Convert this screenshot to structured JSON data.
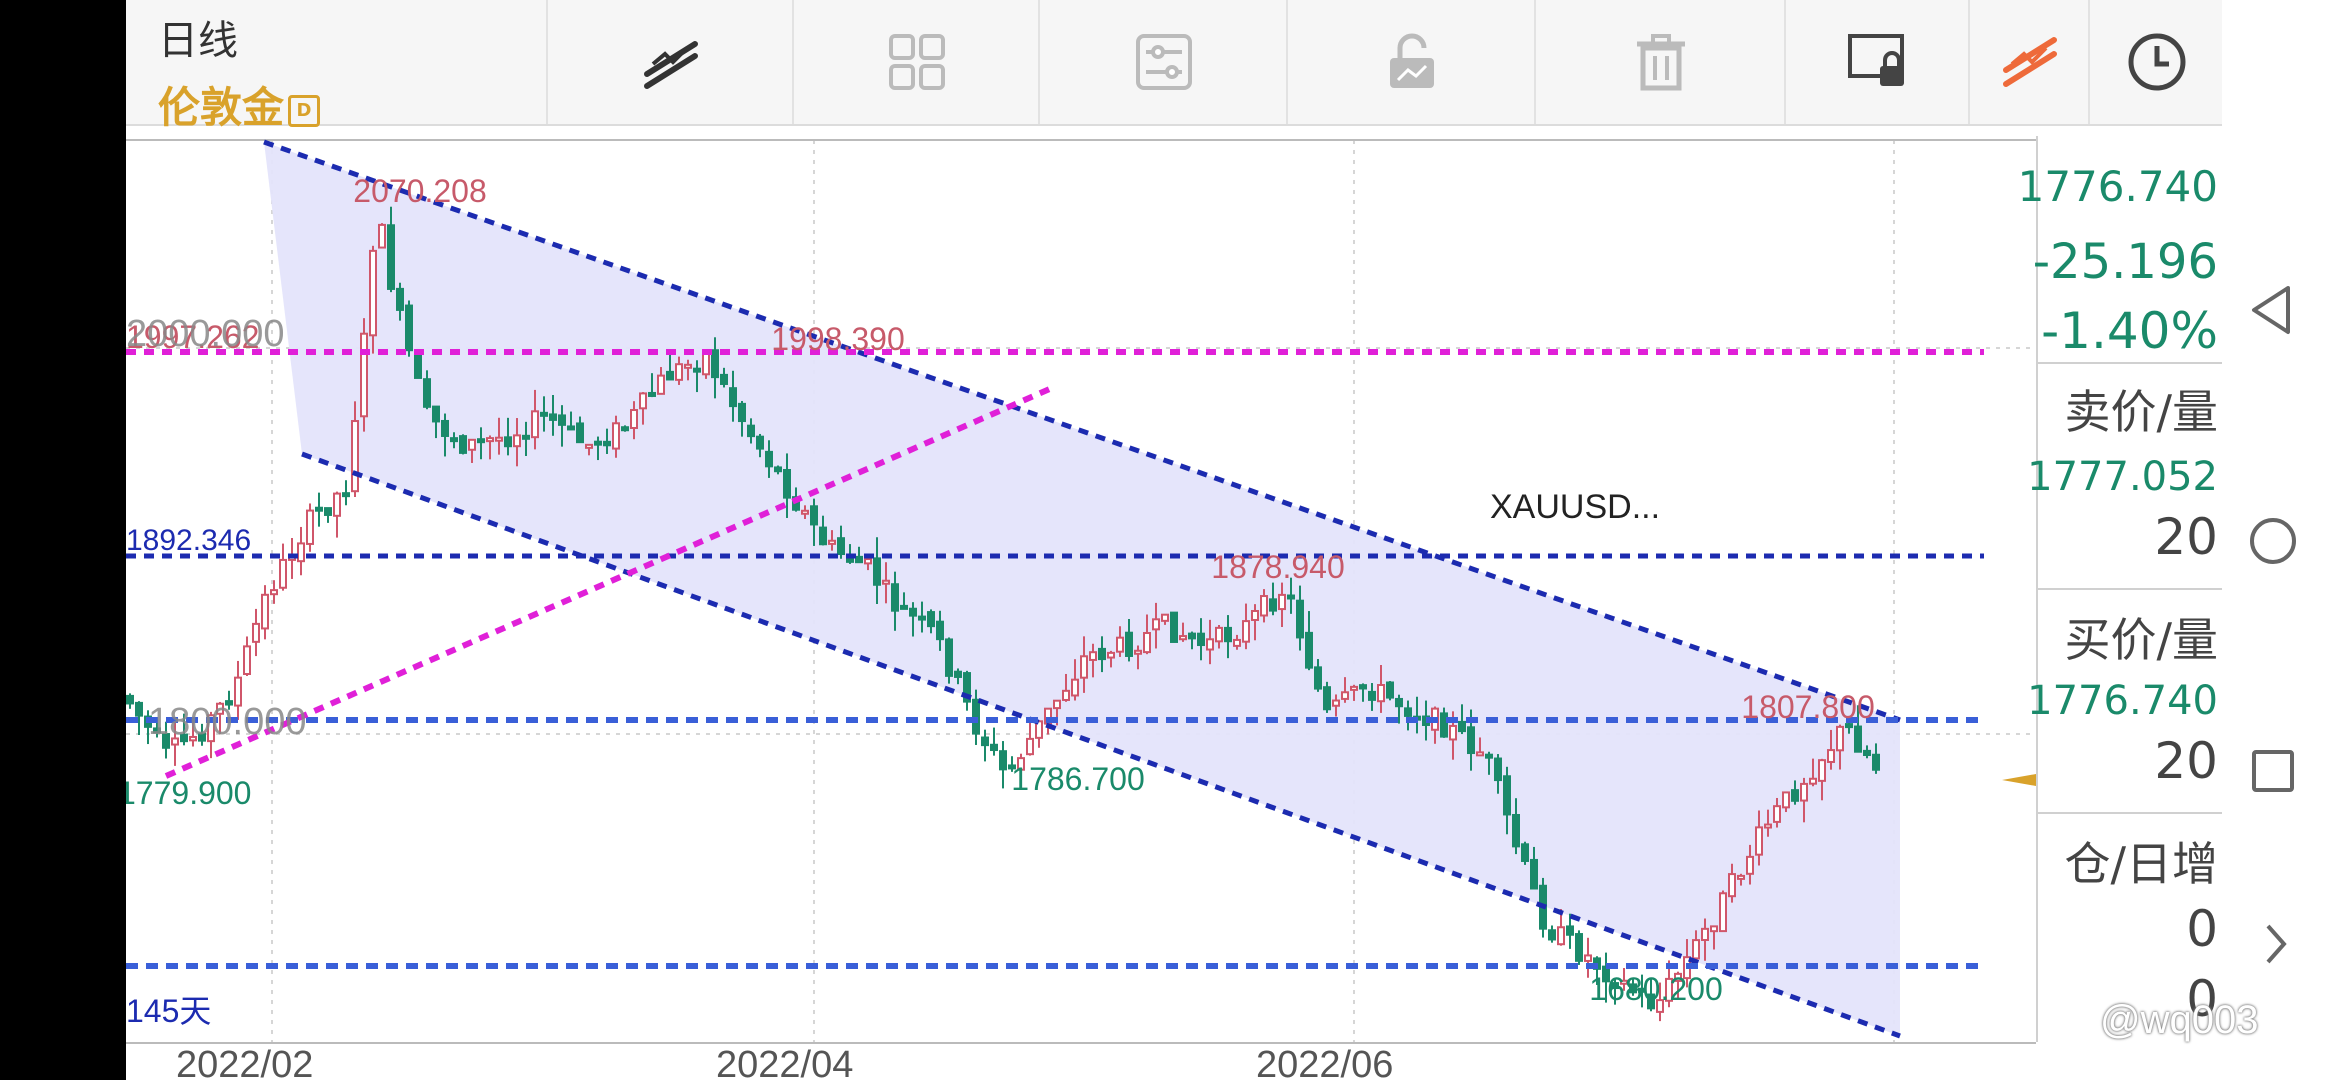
{
  "toolbar": {
    "period": "日线",
    "symbol": "伦敦金",
    "symbol_badge": "D",
    "tools": [
      "drawing-tools-icon",
      "layout-grid-icon",
      "indicator-settings-icon",
      "unlock-drawing-icon",
      "delete-icon",
      "lock-screen-icon",
      "trend-drawing-icon",
      "clock-icon"
    ]
  },
  "chart": {
    "title": "XAUUSD...",
    "annotations": {
      "high_label": "2070.208",
      "mid_high_label": "1998.390",
      "h_line_top_label": "1997.262",
      "h_level_top": "2000.000",
      "h_line_blue_label": "1892.346",
      "mid_label": "1878.940",
      "h_level_bottom": "1800.000",
      "low_left_label": "1779.900",
      "low_mid_label": "1786.700",
      "right_high_label": "1807.800",
      "low_right_label": "1680.200",
      "days_label": "145天"
    },
    "colors": {
      "channel_line": "#1c2bb0",
      "support_magenta": "#e020d8",
      "h_blue": "#3a5fd8",
      "fill": "#e4e4fb",
      "up": "#d0566a",
      "down": "#1a8a6a"
    }
  },
  "price_panel": {
    "last_price": "1776.740",
    "change": "-25.196",
    "change_pct": "-1.40%",
    "ask_label": "卖价/量",
    "ask_price": "1777.052",
    "ask_vol": "20",
    "bid_label": "买价/量",
    "bid_price": "1776.740",
    "bid_vol": "20",
    "oi_label": "仓/日增",
    "oi_value": "0",
    "oi_change": "0"
  },
  "x_axis": [
    "2022/02",
    "2022/04",
    "2022/06"
  ],
  "watermark": "@wq003"
}
